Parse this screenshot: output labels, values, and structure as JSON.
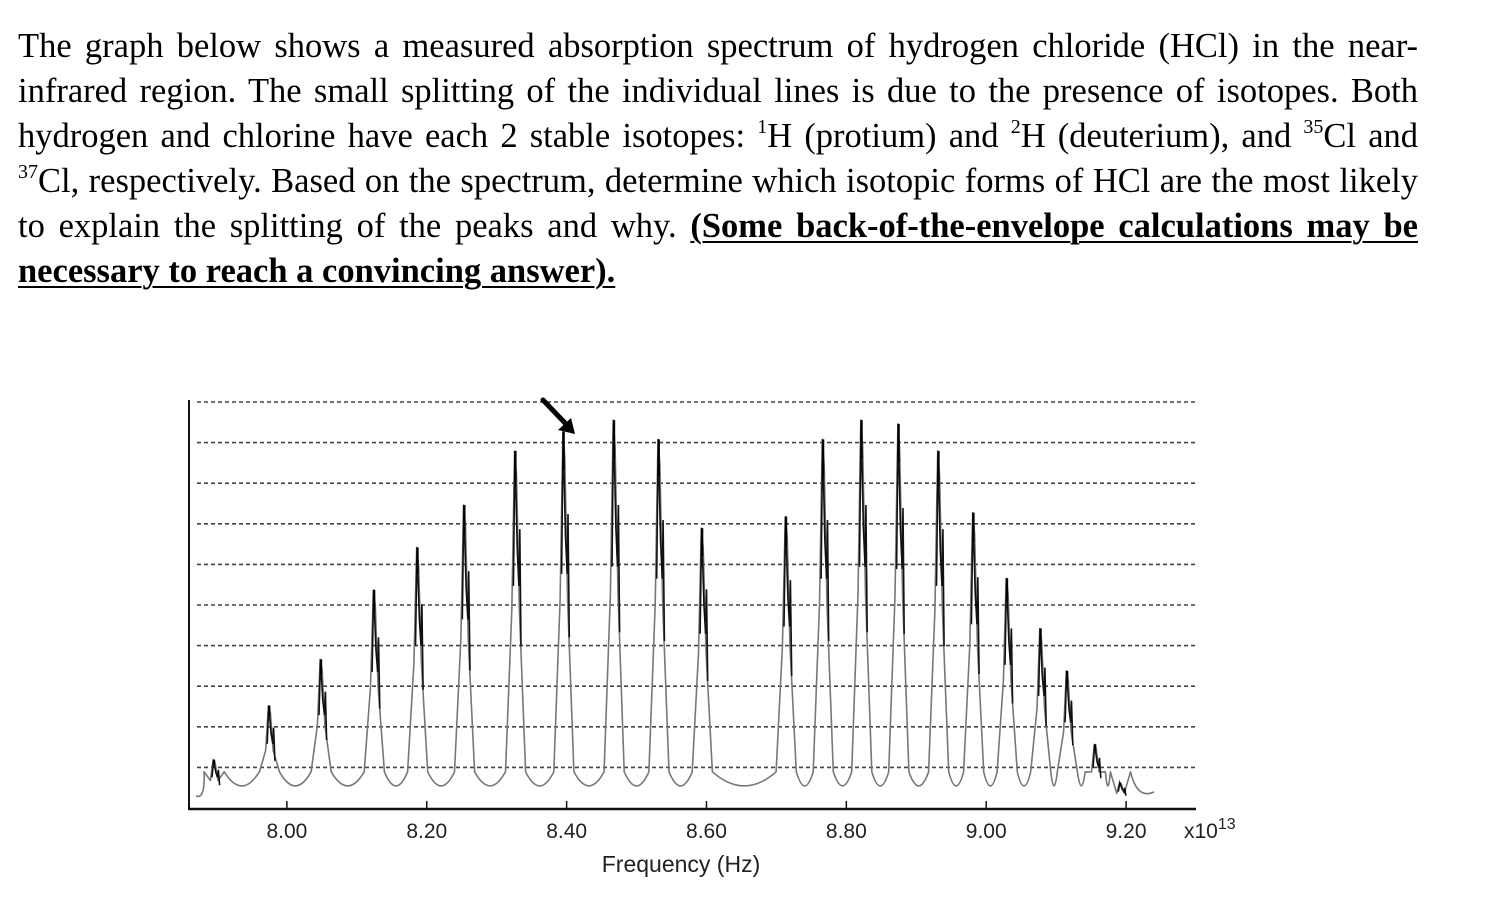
{
  "question": {
    "p1": "The graph below shows a measured absorption spectrum of hydrogen chloride (HCl) in the near-infrared region. The small splitting of the individual lines is due to the presence of isotopes. Both hydrogen and chlorine have each 2 stable isotopes: ",
    "sup_h1": "1",
    "p2": "H (protium) and ",
    "sup_h2": "2",
    "p3": "H (deuterium), and ",
    "sup_cl35": "35",
    "p4": "Cl and ",
    "sup_cl37": "37",
    "p5": "Cl, respectively. Based on the spectrum, determine which isotopic forms of HCl are the most likely to explain the splitting of the peaks and why. ",
    "emphasis": "(Some back-of-the-envelope calculations may be necessary to reach a convincing answer)."
  },
  "chart_data": {
    "type": "line",
    "xlabel": "Frequency (Hz)",
    "x_multiplier": "x10",
    "x_multiplier_exp": "13",
    "xlim": [
      7.86,
      9.3
    ],
    "ylim": [
      0,
      1
    ],
    "x_ticks": [
      8.0,
      8.2,
      8.4,
      8.6,
      8.8,
      9.0,
      9.2
    ],
    "x_tick_labels": [
      "8.00",
      "8.20",
      "8.40",
      "8.60",
      "8.80",
      "9.00",
      "9.20"
    ],
    "grid": "horizontal dashed",
    "peaks": [
      {
        "x": 7.896,
        "height": 0.12
      },
      {
        "x": 7.975,
        "height": 0.26
      },
      {
        "x": 8.049,
        "height": 0.38
      },
      {
        "x": 8.125,
        "height": 0.56
      },
      {
        "x": 8.187,
        "height": 0.67
      },
      {
        "x": 8.254,
        "height": 0.78
      },
      {
        "x": 8.327,
        "height": 0.92
      },
      {
        "x": 8.396,
        "height": 0.97
      },
      {
        "x": 8.468,
        "height": 1.0
      },
      {
        "x": 8.532,
        "height": 0.95
      },
      {
        "x": 8.594,
        "height": 0.72
      },
      {
        "x": 8.714,
        "height": 0.75
      },
      {
        "x": 8.767,
        "height": 0.95
      },
      {
        "x": 8.822,
        "height": 1.0
      },
      {
        "x": 8.875,
        "height": 0.99
      },
      {
        "x": 8.932,
        "height": 0.92
      },
      {
        "x": 8.982,
        "height": 0.76
      },
      {
        "x": 9.03,
        "height": 0.59
      },
      {
        "x": 9.078,
        "height": 0.46
      },
      {
        "x": 9.116,
        "height": 0.35
      },
      {
        "x": 9.156,
        "height": 0.16
      },
      {
        "x": 9.192,
        "height": 0.06
      }
    ],
    "isotope_split": 0.006,
    "minor_ratio": 0.32,
    "arrow_at_peak": 7
  }
}
